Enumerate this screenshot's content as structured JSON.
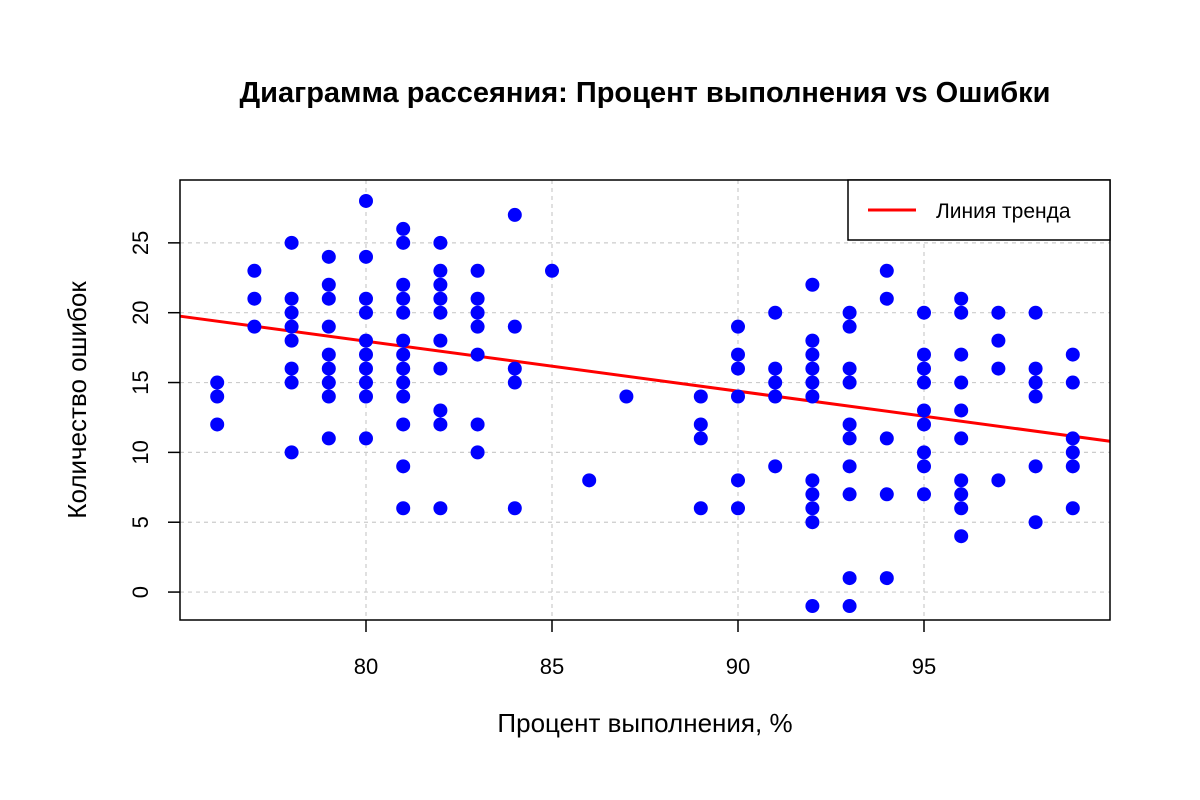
{
  "chart_data": {
    "type": "scatter",
    "title": "Диаграмма рассеяния: Процент выполнения vs Ошибки",
    "xlabel": "Процент выполнения, %",
    "ylabel": "Количество ошибок",
    "xlim": [
      75,
      100
    ],
    "ylim": [
      -2,
      29.5
    ],
    "x_ticks": [
      80,
      85,
      90,
      95
    ],
    "y_ticks": [
      0,
      5,
      10,
      15,
      20,
      25
    ],
    "grid": true,
    "legend": {
      "position": "top-right",
      "entries": [
        {
          "label": "Линия тренда",
          "color": "#ff0000"
        }
      ]
    },
    "point_color": "#0000ff",
    "trend_color": "#ff0000",
    "trend_line": {
      "x": [
        75,
        100
      ],
      "y": [
        19.75,
        10.8
      ]
    },
    "points": [
      [
        76,
        15
      ],
      [
        76,
        14
      ],
      [
        76,
        12
      ],
      [
        77,
        23
      ],
      [
        77,
        21
      ],
      [
        77,
        19
      ],
      [
        78,
        25
      ],
      [
        78,
        21
      ],
      [
        78,
        20
      ],
      [
        78,
        19
      ],
      [
        78,
        18
      ],
      [
        78,
        16
      ],
      [
        78,
        15
      ],
      [
        78,
        10
      ],
      [
        79,
        24
      ],
      [
        79,
        22
      ],
      [
        79,
        21
      ],
      [
        79,
        19
      ],
      [
        79,
        17
      ],
      [
        79,
        16
      ],
      [
        79,
        15
      ],
      [
        79,
        14
      ],
      [
        79,
        11
      ],
      [
        80,
        28
      ],
      [
        80,
        24
      ],
      [
        80,
        21
      ],
      [
        80,
        20
      ],
      [
        80,
        18
      ],
      [
        80,
        17
      ],
      [
        80,
        16
      ],
      [
        80,
        15
      ],
      [
        80,
        14
      ],
      [
        80,
        11
      ],
      [
        81,
        26
      ],
      [
        81,
        25
      ],
      [
        81,
        22
      ],
      [
        81,
        21
      ],
      [
        81,
        20
      ],
      [
        81,
        18
      ],
      [
        81,
        17
      ],
      [
        81,
        16
      ],
      [
        81,
        15
      ],
      [
        81,
        14
      ],
      [
        81,
        12
      ],
      [
        81,
        9
      ],
      [
        81,
        6
      ],
      [
        82,
        25
      ],
      [
        82,
        23
      ],
      [
        82,
        22
      ],
      [
        82,
        21
      ],
      [
        82,
        20
      ],
      [
        82,
        18
      ],
      [
        82,
        16
      ],
      [
        82,
        13
      ],
      [
        82,
        12
      ],
      [
        82,
        6
      ],
      [
        83,
        23
      ],
      [
        83,
        21
      ],
      [
        83,
        20
      ],
      [
        83,
        19
      ],
      [
        83,
        17
      ],
      [
        83,
        12
      ],
      [
        83,
        10
      ],
      [
        84,
        27
      ],
      [
        84,
        19
      ],
      [
        84,
        16
      ],
      [
        84,
        15
      ],
      [
        84,
        6
      ],
      [
        85,
        23
      ],
      [
        86,
        8
      ],
      [
        87,
        14
      ],
      [
        89,
        14
      ],
      [
        89,
        12
      ],
      [
        89,
        11
      ],
      [
        89,
        6
      ],
      [
        90,
        19
      ],
      [
        90,
        17
      ],
      [
        90,
        16
      ],
      [
        90,
        14
      ],
      [
        90,
        8
      ],
      [
        90,
        6
      ],
      [
        91,
        20
      ],
      [
        91,
        16
      ],
      [
        91,
        15
      ],
      [
        91,
        14
      ],
      [
        91,
        9
      ],
      [
        92,
        22
      ],
      [
        92,
        18
      ],
      [
        92,
        17
      ],
      [
        92,
        16
      ],
      [
        92,
        15
      ],
      [
        92,
        14
      ],
      [
        92,
        8
      ],
      [
        92,
        7
      ],
      [
        92,
        6
      ],
      [
        92,
        5
      ],
      [
        92,
        -1
      ],
      [
        93,
        20
      ],
      [
        93,
        19
      ],
      [
        93,
        16
      ],
      [
        93,
        15
      ],
      [
        93,
        12
      ],
      [
        93,
        11
      ],
      [
        93,
        9
      ],
      [
        93,
        7
      ],
      [
        93,
        1
      ],
      [
        93,
        -1
      ],
      [
        94,
        23
      ],
      [
        94,
        21
      ],
      [
        94,
        11
      ],
      [
        94,
        7
      ],
      [
        94,
        1
      ],
      [
        95,
        20
      ],
      [
        95,
        17
      ],
      [
        95,
        16
      ],
      [
        95,
        15
      ],
      [
        95,
        13
      ],
      [
        95,
        12
      ],
      [
        95,
        10
      ],
      [
        95,
        9
      ],
      [
        95,
        7
      ],
      [
        96,
        21
      ],
      [
        96,
        20
      ],
      [
        96,
        17
      ],
      [
        96,
        15
      ],
      [
        96,
        13
      ],
      [
        96,
        11
      ],
      [
        96,
        8
      ],
      [
        96,
        7
      ],
      [
        96,
        6
      ],
      [
        96,
        4
      ],
      [
        97,
        20
      ],
      [
        97,
        18
      ],
      [
        97,
        16
      ],
      [
        97,
        8
      ],
      [
        98,
        20
      ],
      [
        98,
        16
      ],
      [
        98,
        15
      ],
      [
        98,
        14
      ],
      [
        98,
        9
      ],
      [
        98,
        5
      ],
      [
        99,
        17
      ],
      [
        99,
        15
      ],
      [
        99,
        11
      ],
      [
        99,
        10
      ],
      [
        99,
        9
      ],
      [
        99,
        6
      ]
    ]
  }
}
